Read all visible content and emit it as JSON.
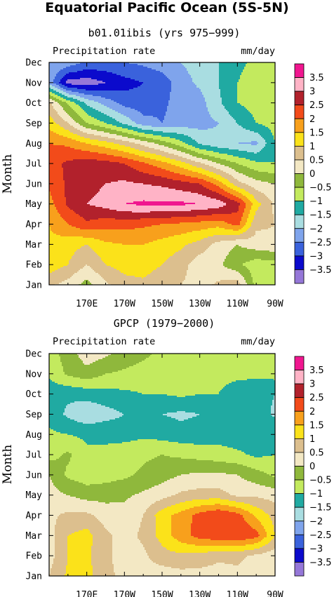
{
  "figure": {
    "title": "Equatorial Pacific Ocean (5S-5N)"
  },
  "colorbar": {
    "labels": [
      "3.5",
      "3",
      "2.5",
      "2",
      "1.5",
      "1",
      "0.5",
      "0",
      "−0.5",
      "−1",
      "−1.5",
      "−2",
      "−2.5",
      "−3",
      "−3.5"
    ],
    "colors": [
      "#f0168f",
      "#ffb3c6",
      "#b2212c",
      "#f24b1a",
      "#f8a01c",
      "#fbe21a",
      "#dcbf8e",
      "#f3e8c4",
      "#8fb83c",
      "#c3ea5e",
      "#20aaa2",
      "#a9dde1",
      "#7fa4ec",
      "#3a62dc",
      "#0b0acc",
      "#9577d8"
    ]
  },
  "chart_data": [
    {
      "type": "heatmap",
      "subtitle": "b01.01ibis (yrs 975−999)",
      "left_label": "Precipitation rate",
      "right_label": "mm/day",
      "ylabel": "Month",
      "x_ticks": [
        "170E",
        "170W",
        "150W",
        "130W",
        "110W",
        "90W"
      ],
      "y_ticks": [
        "Jan",
        "Feb",
        "Mar",
        "Apr",
        "May",
        "Jun",
        "Jul",
        "Aug",
        "Sep",
        "Oct",
        "Nov",
        "Dec"
      ],
      "levels": [
        -3.5,
        -3,
        -2.5,
        -2,
        -1.5,
        -1,
        -0.5,
        0,
        0.5,
        1,
        1.5,
        2,
        2.5,
        3,
        3.5
      ],
      "grid": {
        "x": [
          150,
          160,
          170,
          180,
          190,
          200,
          210,
          220,
          230,
          240,
          250,
          260,
          270
        ],
        "y": [
          "Jan",
          "Feb",
          "Mar",
          "Apr",
          "May",
          "Jun",
          "Jul",
          "Aug",
          "Sep",
          "Oct",
          "Nov",
          "Dec"
        ],
        "z": [
          [
            0.6,
            0.3,
            -0.2,
            0.4,
            0.8,
            0.9,
            0.7,
            0.5,
            0.3,
            0.6,
            0.8,
            -0.7,
            -0.6
          ],
          [
            1.3,
            1.0,
            0.5,
            1.0,
            1.2,
            1.2,
            1.0,
            0.7,
            0.2,
            0.1,
            -0.4,
            -0.8,
            -0.7
          ],
          [
            1.4,
            1.2,
            1.0,
            1.4,
            1.5,
            1.5,
            1.3,
            1.1,
            0.8,
            0.3,
            0.0,
            0.3,
            0.4
          ],
          [
            1.5,
            2.0,
            2.4,
            2.2,
            2.2,
            2.1,
            2.0,
            1.9,
            1.8,
            1.7,
            2.2,
            0.6,
            0.5
          ],
          [
            1.8,
            2.6,
            3.0,
            3.2,
            3.5,
            3.6,
            3.6,
            3.6,
            3.5,
            3.3,
            2.7,
            1.2,
            0.4
          ],
          [
            2.1,
            2.6,
            2.8,
            3.0,
            3.1,
            3.0,
            2.9,
            2.7,
            2.5,
            1.8,
            0.7,
            0.2,
            0.0
          ],
          [
            2.3,
            2.6,
            2.8,
            2.7,
            2.5,
            2.1,
            1.7,
            1.2,
            0.6,
            0.0,
            -0.5,
            -0.9,
            -1.0
          ],
          [
            2.0,
            1.9,
            1.5,
            1.2,
            0.8,
            0.3,
            -0.2,
            -0.8,
            -1.6,
            -1.9,
            -2.0,
            -2.1,
            -1.0
          ],
          [
            1.3,
            0.5,
            -0.5,
            -1.0,
            -1.6,
            -2.3,
            -2.5,
            -2.3,
            -2.2,
            -2.0,
            -1.5,
            -1.0,
            -0.8
          ],
          [
            0.6,
            -0.6,
            -1.6,
            -2.2,
            -2.7,
            -2.8,
            -2.6,
            -2.3,
            -2.2,
            -1.6,
            -1.0,
            -0.8,
            -0.9
          ],
          [
            -2.2,
            -3.7,
            -3.8,
            -3.5,
            -3.2,
            -3.0,
            -2.8,
            -2.2,
            -1.9,
            -1.5,
            -1.0,
            -0.8,
            -0.9
          ],
          [
            -2.0,
            -2.2,
            -2.6,
            -2.6,
            -2.5,
            -2.4,
            -2.2,
            -2.0,
            -1.8,
            -1.5,
            -1.1,
            -0.9,
            -0.9
          ]
        ]
      }
    },
    {
      "type": "heatmap",
      "subtitle": "GPCP (1979−2000)",
      "left_label": "Precipitation rate",
      "right_label": "mm/day",
      "ylabel": "Month",
      "x_ticks": [
        "170E",
        "170W",
        "150W",
        "130W",
        "110W",
        "90W"
      ],
      "y_ticks": [
        "Jan",
        "Feb",
        "Mar",
        "Apr",
        "May",
        "Jun",
        "Jul",
        "Aug",
        "Sep",
        "Oct",
        "Nov",
        "Dec"
      ],
      "levels": [
        -3.5,
        -3,
        -2.5,
        -2,
        -1.5,
        -1,
        -0.5,
        0,
        0.5,
        1,
        1.5,
        2,
        2.5,
        3,
        3.5
      ],
      "grid": {
        "x": [
          150,
          160,
          170,
          180,
          190,
          200,
          210,
          220,
          230,
          240,
          250,
          260,
          270
        ],
        "y": [
          "Jan",
          "Feb",
          "Mar",
          "Apr",
          "May",
          "Jun",
          "Jul",
          "Aug",
          "Sep",
          "Oct",
          "Nov",
          "Dec"
        ],
        "z": [
          [
            0.5,
            1.1,
            1.2,
            0.6,
            0.4,
            0.3,
            0.2,
            0.3,
            0.3,
            0.3,
            0.4,
            0.3,
            0.3
          ],
          [
            0.3,
            1.0,
            1.1,
            0.6,
            0.3,
            0.4,
            0.8,
            0.9,
            0.8,
            0.6,
            0.6,
            0.4,
            0.2
          ],
          [
            0.3,
            1.0,
            1.2,
            0.6,
            0.3,
            0.6,
            1.2,
            1.8,
            2.2,
            2.4,
            2.5,
            2.2,
            1.0
          ],
          [
            0.4,
            0.6,
            0.6,
            0.3,
            0.2,
            0.5,
            1.3,
            1.7,
            2.2,
            2.5,
            2.2,
            1.4,
            0.8
          ],
          [
            0.2,
            0.0,
            -0.2,
            -0.2,
            -0.1,
            0.1,
            0.3,
            0.6,
            0.7,
            0.7,
            0.4,
            0.4,
            0.3
          ],
          [
            0.0,
            -0.6,
            -0.8,
            -0.7,
            -0.6,
            -0.4,
            -0.2,
            0.0,
            0.1,
            0.1,
            0.0,
            -0.3,
            -0.6
          ],
          [
            -0.7,
            -0.4,
            -0.9,
            -0.9,
            -0.7,
            -0.6,
            -0.5,
            -0.6,
            -0.7,
            -0.8,
            -0.9,
            -1.1,
            -1.0
          ],
          [
            -0.9,
            -1.0,
            -1.1,
            -1.1,
            -1.2,
            -1.1,
            -1.2,
            -1.3,
            -1.3,
            -1.2,
            -1.3,
            -1.1,
            -1.0
          ],
          [
            -1.2,
            -1.6,
            -1.9,
            -1.7,
            -1.5,
            -1.4,
            -1.5,
            -1.6,
            -1.5,
            -1.3,
            -1.0,
            -1.2,
            -1.6
          ],
          [
            -1.3,
            -1.4,
            -1.3,
            -1.2,
            -1.1,
            -1.0,
            -1.0,
            -0.9,
            -1.0,
            -1.0,
            -1.2,
            -1.3,
            -1.5
          ],
          [
            -0.9,
            -0.4,
            -0.2,
            -0.5,
            -0.6,
            -0.7,
            -0.8,
            -0.8,
            -0.9,
            -0.9,
            -0.9,
            -0.9,
            -0.8
          ],
          [
            -0.7,
            -0.3,
            0.3,
            0.1,
            -0.2,
            -0.4,
            -0.6,
            -0.7,
            -0.8,
            -0.8,
            -0.8,
            -0.8,
            -0.7
          ]
        ]
      }
    }
  ]
}
